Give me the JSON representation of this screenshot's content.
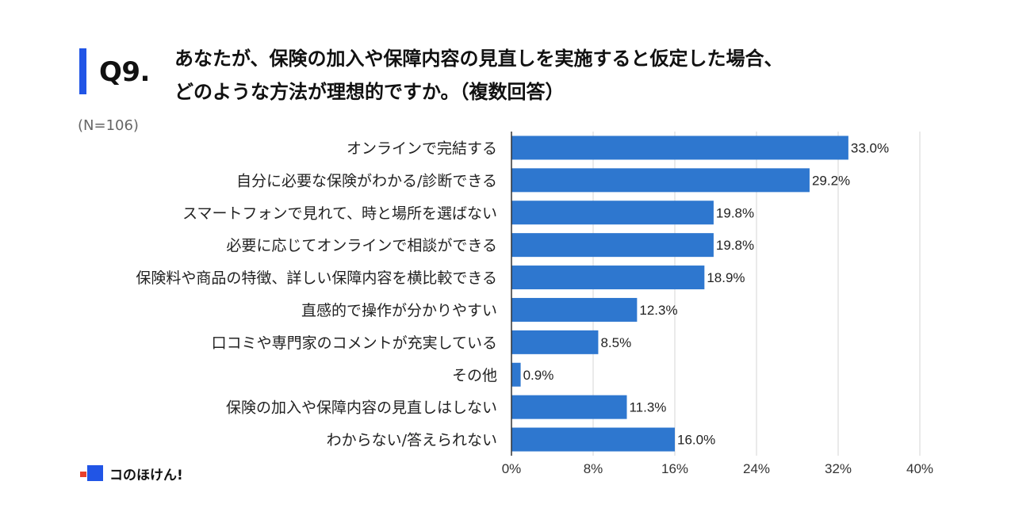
{
  "question": {
    "number": "Q9.",
    "line1": "あなたが、保険の加入や保障内容の見直しを実施すると仮定した場合、",
    "line2": "どのような方法が理想的ですか。（複数回答）",
    "sample_size": "(N=106)"
  },
  "brand": {
    "name": "コのほけん!"
  },
  "colors": {
    "bar": "#2e77cf",
    "accent": "#2155e6",
    "grid": "#d6d6d6",
    "axis": "#333333",
    "logo_red": "#e8412c"
  },
  "chart_data": {
    "type": "bar",
    "orientation": "horizontal",
    "title": "あなたが、保険の加入や保障内容の見直しを実施すると仮定した場合、どのような方法が理想的ですか。（複数回答）",
    "xlabel": "",
    "ylabel": "",
    "xlim": [
      0,
      40
    ],
    "xticks": [
      0,
      8,
      16,
      24,
      32,
      40
    ],
    "tick_suffix": "%",
    "grid": true,
    "categories": [
      "オンラインで完結する",
      "自分に必要な保険がわかる/診断できる",
      "スマートフォンで見れて、時と場所を選ばない",
      "必要に応じてオンラインで相談ができる",
      "保険料や商品の特徴、詳しい保障内容を横比較できる",
      "直感的で操作が分かりやすい",
      "口コミや専門家のコメントが充実している",
      "その他",
      "保険の加入や保障内容の見直しはしない",
      "わからない/答えられない"
    ],
    "values": [
      33.0,
      29.2,
      19.8,
      19.8,
      18.9,
      12.3,
      8.5,
      0.9,
      11.3,
      16.0
    ],
    "data_labels": [
      "33.0%",
      "29.2%",
      "19.8%",
      "19.8%",
      "18.9%",
      "12.3%",
      "8.5%",
      "0.9%",
      "11.3%",
      "16.0%"
    ]
  }
}
